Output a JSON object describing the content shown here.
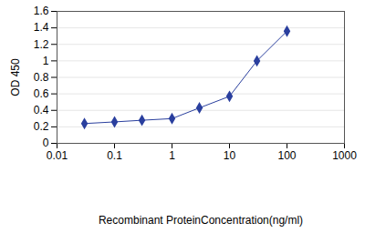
{
  "chart_data": {
    "type": "line",
    "x_label": "Recombinant ProteinConcentration(ng/ml)",
    "y_label": "OD 450",
    "x": [
      0.03,
      0.1,
      0.3,
      1,
      3,
      10,
      30,
      100
    ],
    "values": [
      0.24,
      0.26,
      0.28,
      0.3,
      0.43,
      0.57,
      1.0,
      1.36
    ],
    "color": "#2a3f9e",
    "marker": "diamond",
    "log": "x",
    "grid": true,
    "xlim": [
      0.01,
      1000
    ],
    "xticks": [
      0.01,
      0.1,
      1,
      10,
      100,
      1000
    ],
    "ylim": [
      0,
      1.6
    ],
    "yticks": [
      0,
      0.2,
      0.4,
      0.6,
      0.8,
      1,
      1.2,
      1.4,
      1.6
    ]
  }
}
